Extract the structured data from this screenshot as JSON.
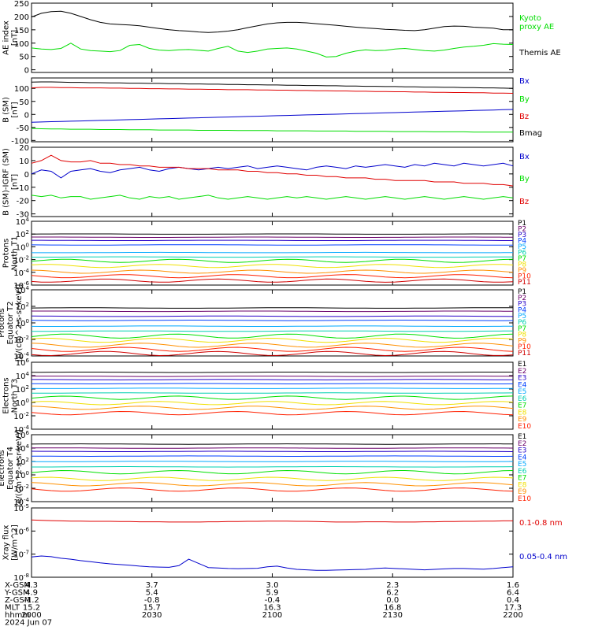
{
  "colors": {
    "black": "#000000",
    "red": "#e00000",
    "green": "#00dd00",
    "blue": "#0000cc",
    "P": [
      "#000000",
      "#6a006a",
      "#2400c8",
      "#0040ff",
      "#00a8ff",
      "#00d0b0",
      "#00e000",
      "#f0e000",
      "#ff9000",
      "#ff2000",
      "#d00000"
    ],
    "E": [
      "#000000",
      "#6a006a",
      "#2400c8",
      "#0040ff",
      "#00a8ff",
      "#00d0b0",
      "#00e000",
      "#f0e000",
      "#ff9000",
      "#ff2000"
    ]
  },
  "chart_data": [
    {
      "type": "line",
      "ylabel": [
        "AE index",
        "[nT]"
      ],
      "ylim": [
        -10,
        250
      ],
      "yticks": [
        "250",
        "200",
        "150",
        "100",
        "50",
        "0"
      ],
      "legend": [
        "Kyoto",
        "proxy AE",
        "Themis AE"
      ],
      "series": [
        {
          "name": "Themis AE",
          "color": "black",
          "values": [
            198,
            212,
            218,
            220,
            212,
            200,
            188,
            178,
            172,
            170,
            168,
            165,
            160,
            155,
            150,
            147,
            145,
            142,
            140,
            142,
            145,
            150,
            158,
            165,
            172,
            176,
            178,
            178,
            176,
            173,
            170,
            167,
            163,
            160,
            157,
            155,
            152,
            150,
            148,
            147,
            150,
            156,
            162,
            164,
            163,
            160,
            158,
            156,
            150,
            150
          ]
        },
        {
          "name": "Kyoto proxy AE",
          "color": "green",
          "values": [
            82,
            78,
            76,
            80,
            100,
            78,
            72,
            70,
            68,
            72,
            92,
            95,
            80,
            74,
            72,
            75,
            76,
            73,
            70,
            80,
            88,
            70,
            65,
            70,
            78,
            80,
            82,
            78,
            70,
            62,
            48,
            50,
            62,
            70,
            75,
            72,
            73,
            78,
            80,
            76,
            72,
            70,
            74,
            80,
            85,
            88,
            92,
            98,
            96,
            95
          ]
        }
      ]
    },
    {
      "type": "line",
      "ylabel": [
        "B (SM)",
        "[nT]"
      ],
      "ylim": [
        -105,
        140
      ],
      "yticks": [
        "150",
        "100",
        "50",
        "0",
        "-50",
        "-100"
      ],
      "legend": [
        "Bx",
        "By",
        "Bz",
        "Bmag"
      ],
      "series": [
        {
          "name": "Bx",
          "color": "black",
          "values": [
            124,
            125,
            125,
            124,
            123,
            123,
            122,
            122,
            121,
            121,
            120,
            120,
            119,
            119,
            118,
            118,
            117,
            117,
            116,
            116,
            115,
            115,
            114,
            114,
            113,
            113,
            112,
            112,
            111,
            111,
            110,
            110,
            109,
            109,
            108,
            108,
            107,
            107,
            106,
            106,
            105,
            105,
            104,
            104,
            103,
            103,
            102,
            102,
            101,
            100
          ]
        },
        {
          "name": "By",
          "color": "red",
          "values": [
            102,
            104,
            104,
            103,
            103,
            102,
            102,
            102,
            101,
            101,
            100,
            100,
            99,
            99,
            98,
            98,
            97,
            97,
            96,
            96,
            95,
            95,
            95,
            94,
            94,
            93,
            93,
            92,
            92,
            91,
            91,
            90,
            90,
            89,
            89,
            88,
            88,
            87,
            87,
            86,
            86,
            85,
            85,
            84,
            84,
            83,
            83,
            82,
            82,
            81
          ]
        },
        {
          "name": "Bz",
          "color": "blue",
          "values": [
            -30,
            -29,
            -28,
            -27,
            -26,
            -25,
            -24,
            -23,
            -22,
            -21,
            -20,
            -19,
            -18,
            -17,
            -16,
            -15,
            -14,
            -13,
            -12,
            -11,
            -10,
            -9,
            -8,
            -7,
            -6,
            -5,
            -4,
            -3,
            -2,
            -1,
            0,
            1,
            2,
            3,
            4,
            5,
            6,
            7,
            8,
            9,
            10,
            11,
            12,
            13,
            14,
            15,
            16,
            17,
            18,
            19
          ]
        },
        {
          "name": "Bmag",
          "color": "green",
          "values": [
            -54,
            -55,
            -56,
            -56,
            -57,
            -57,
            -57,
            -58,
            -58,
            -58,
            -59,
            -59,
            -59,
            -60,
            -60,
            -60,
            -60,
            -61,
            -61,
            -61,
            -61,
            -62,
            -62,
            -62,
            -62,
            -63,
            -63,
            -63,
            -63,
            -64,
            -64,
            -64,
            -64,
            -65,
            -65,
            -65,
            -65,
            -66,
            -66,
            -66,
            -66,
            -67,
            -67,
            -67,
            -67,
            -68,
            -68,
            -68,
            -68,
            -68
          ]
        }
      ]
    },
    {
      "type": "line",
      "ylabel": [
        "B (SM)-IGRF (SM)",
        "[nT]"
      ],
      "ylim": [
        -32,
        20
      ],
      "yticks": [
        "20",
        "10",
        "0",
        "-10",
        "-20",
        "-30"
      ],
      "legend": [
        "Bx",
        "By",
        "Bz"
      ],
      "series": [
        {
          "name": "Bx",
          "color": "blue",
          "values": [
            0,
            3,
            2,
            -3,
            2,
            3,
            4,
            2,
            1,
            3,
            4,
            5,
            3,
            2,
            4,
            5,
            4,
            3,
            4,
            5,
            4,
            5,
            6,
            4,
            5,
            6,
            5,
            4,
            3,
            5,
            6,
            5,
            4,
            6,
            5,
            6,
            7,
            6,
            5,
            7,
            6,
            8,
            7,
            6,
            8,
            7,
            6,
            7,
            8,
            6
          ]
        },
        {
          "name": "Bz",
          "color": "red",
          "values": [
            8,
            10,
            14,
            10,
            9,
            9,
            10,
            8,
            8,
            7,
            7,
            6,
            6,
            5,
            5,
            5,
            4,
            4,
            4,
            3,
            3,
            3,
            2,
            2,
            1,
            1,
            0,
            0,
            -1,
            -1,
            -2,
            -2,
            -3,
            -3,
            -3,
            -4,
            -4,
            -5,
            -5,
            -5,
            -5,
            -6,
            -6,
            -6,
            -7,
            -7,
            -7,
            -8,
            -8,
            -9
          ]
        },
        {
          "name": "By",
          "color": "green",
          "values": [
            -16,
            -17,
            -16,
            -18,
            -17,
            -17,
            -19,
            -18,
            -17,
            -16,
            -18,
            -19,
            -17,
            -18,
            -17,
            -19,
            -18,
            -17,
            -16,
            -18,
            -19,
            -18,
            -17,
            -18,
            -19,
            -18,
            -17,
            -18,
            -17,
            -18,
            -19,
            -18,
            -17,
            -18,
            -19,
            -18,
            -17,
            -18,
            -19,
            -18,
            -17,
            -18,
            -19,
            -18,
            -17,
            -18,
            -19,
            -18,
            -17,
            -18
          ]
        }
      ]
    },
    {
      "type": "line",
      "log": true,
      "ylabel": [
        "Protons",
        "North T1"
      ],
      "ylim": [
        -6,
        4
      ],
      "yticks": [
        "10^4",
        "10^2",
        "10^0",
        "10^-2",
        "10^-4",
        "10^-6"
      ],
      "legend": [
        "P1",
        "P2",
        "P3",
        "P4",
        "P5",
        "P6",
        "P7",
        "P8",
        "P9",
        "P10",
        "P11"
      ],
      "levels": [
        2.0,
        1.5,
        1.0,
        0.3,
        -0.9,
        -1.6,
        -2.2,
        -3.0,
        -3.9,
        -4.6,
        -5.3
      ]
    },
    {
      "type": "line",
      "log": true,
      "ylabel": [
        "Protons",
        "Equator T2",
        "[p/(cm^2-s-sr-keV)]"
      ],
      "ylim": [
        -4,
        4
      ],
      "yticks": [
        "10^4",
        "10^2",
        "10^0",
        "10^-2",
        "10^-4"
      ],
      "legend": [
        "P1",
        "P2",
        "P3",
        "P4",
        "P5",
        "P6",
        "P7",
        "P8",
        "P9",
        "P10",
        "P11"
      ],
      "levels": [
        1.8,
        1.4,
        0.8,
        0.3,
        -0.4,
        -1.0,
        -1.6,
        -2.1,
        -2.7,
        -3.2,
        -3.7
      ]
    },
    {
      "type": "line",
      "log": true,
      "ylabel": [
        "Electrons",
        "North T3"
      ],
      "ylim": [
        -4,
        6
      ],
      "yticks": [
        "10^6",
        "10^4",
        "10^2",
        "10^0",
        "10^-2",
        "10^-4"
      ],
      "legend": [
        "E1",
        "E2",
        "E3",
        "E4",
        "E5",
        "E6",
        "E7",
        "E8",
        "E9",
        "E10"
      ],
      "levels": [
        4.5,
        3.9,
        3.4,
        2.8,
        2.1,
        1.4,
        0.7,
        -0.1,
        -0.8,
        -1.6
      ]
    },
    {
      "type": "line",
      "log": true,
      "ylabel": [
        "Electrons",
        "Equator T4",
        "[e/(cm^2-s-sr-keV)]"
      ],
      "ylim": [
        -4,
        6
      ],
      "yticks": [
        "10^6",
        "10^4",
        "10^2",
        "10^0",
        "10^-2",
        "10^-4"
      ],
      "legend": [
        "E1",
        "E2",
        "E3",
        "E4",
        "E5",
        "E6",
        "E7",
        "E8",
        "E9",
        "E10"
      ],
      "levels": [
        4.6,
        4.0,
        3.5,
        2.8,
        2.0,
        1.2,
        0.4,
        -0.6,
        -1.4,
        -2.2
      ]
    },
    {
      "type": "line",
      "log": true,
      "ylabel": [
        "Xray flux",
        "[W/m^2]"
      ],
      "ylim": [
        -8,
        -5
      ],
      "yticks": [
        "10^-5",
        "10^-6",
        "10^-7",
        "10^-8"
      ],
      "legend": [
        "0.1-0.8 nm",
        "0.05-0.4 nm"
      ],
      "series": [
        {
          "name": "0.1-0.8 nm",
          "color": "red",
          "values": [
            -5.52,
            -5.54,
            -5.55,
            -5.56,
            -5.57,
            -5.57,
            -5.58,
            -5.58,
            -5.58,
            -5.59,
            -5.59,
            -5.6,
            -5.6,
            -5.6,
            -5.61,
            -5.61,
            -5.61,
            -5.61,
            -5.6,
            -5.6,
            -5.59,
            -5.59,
            -5.58,
            -5.58,
            -5.57,
            -5.57,
            -5.57,
            -5.58,
            -5.58,
            -5.59,
            -5.6,
            -5.61,
            -5.61,
            -5.61,
            -5.6,
            -5.6,
            -5.6,
            -5.61,
            -5.61,
            -5.61,
            -5.6,
            -5.6,
            -5.59,
            -5.59,
            -5.58,
            -5.58,
            -5.57,
            -5.57,
            -5.56,
            -5.56
          ]
        },
        {
          "name": "0.05-0.4 nm",
          "color": "blue",
          "values": [
            -7.12,
            -7.08,
            -7.11,
            -7.18,
            -7.22,
            -7.28,
            -7.33,
            -7.38,
            -7.42,
            -7.45,
            -7.48,
            -7.52,
            -7.55,
            -7.56,
            -7.57,
            -7.5,
            -7.22,
            -7.4,
            -7.58,
            -7.6,
            -7.62,
            -7.63,
            -7.62,
            -7.61,
            -7.55,
            -7.52,
            -7.6,
            -7.66,
            -7.68,
            -7.7,
            -7.7,
            -7.69,
            -7.68,
            -7.67,
            -7.66,
            -7.62,
            -7.6,
            -7.62,
            -7.64,
            -7.66,
            -7.68,
            -7.66,
            -7.64,
            -7.62,
            -7.62,
            -7.64,
            -7.65,
            -7.62,
            -7.58,
            -7.55
          ]
        }
      ]
    }
  ],
  "footer": {
    "rows": [
      {
        "label": "X-GSM",
        "values": [
          "4.3",
          "3.7",
          "3.0",
          "2.3",
          "1.6"
        ]
      },
      {
        "label": "Y-GSM",
        "values": [
          "4.9",
          "5.4",
          "5.9",
          "6.2",
          "6.4"
        ]
      },
      {
        "label": "Z-GSM",
        "values": [
          "-1.2",
          "-0.8",
          "-0.4",
          "0.0",
          "0.4"
        ]
      },
      {
        "label": "MLT",
        "values": [
          "15.2",
          "15.7",
          "16.3",
          "16.8",
          "17.3"
        ]
      },
      {
        "label": "hhmm",
        "values": [
          "2000",
          "2030",
          "2100",
          "2130",
          "2200"
        ]
      }
    ],
    "date": "2024 Jun 07"
  }
}
